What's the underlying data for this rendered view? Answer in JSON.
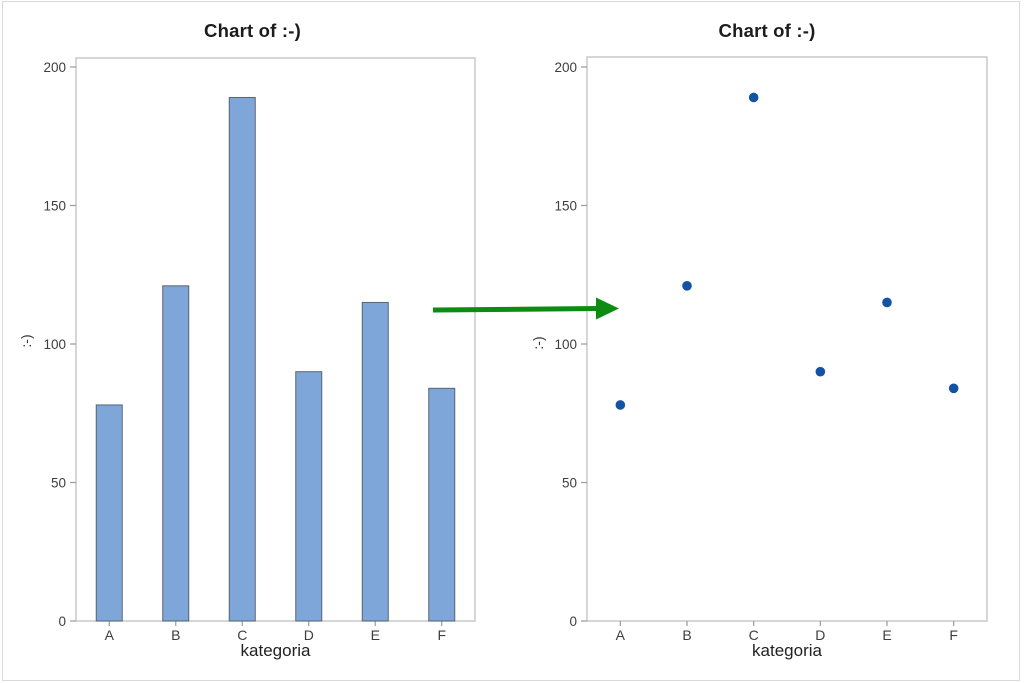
{
  "chart_data": [
    {
      "type": "bar",
      "title": "Chart of :-)",
      "xlabel": "kategoria",
      "ylabel": ":-)",
      "categories": [
        "A",
        "B",
        "C",
        "D",
        "E",
        "F"
      ],
      "values": [
        78,
        121,
        189,
        90,
        115,
        84
      ],
      "yticks": [
        0,
        50,
        100,
        150,
        200
      ],
      "ylim": [
        0,
        204
      ],
      "grid": false,
      "legend": null,
      "bar_fill": "#7EA6D9",
      "bar_stroke": "#566573"
    },
    {
      "type": "scatter",
      "title": "Chart of :-)",
      "xlabel": "kategoria",
      "ylabel": ":-)",
      "categories": [
        "A",
        "B",
        "C",
        "D",
        "E",
        "F"
      ],
      "values": [
        78,
        121,
        189,
        90,
        115,
        84
      ],
      "yticks": [
        0,
        50,
        100,
        150,
        200
      ],
      "ylim": [
        0,
        204
      ],
      "grid": false,
      "legend": null,
      "point_color": "#1453A3"
    }
  ],
  "annotation_arrow": {
    "color": "#0E8C12",
    "direction": "right"
  },
  "style": {
    "background": "#FFFFFF",
    "outer_border_color": "#D9D9D9",
    "plot_border_color": "#BFBFBF",
    "tick_color": "#9A9A9A",
    "tick_label_color": "#3E3E3E",
    "title_color": "#1C1C1C",
    "axis_title_color": "#222222"
  }
}
